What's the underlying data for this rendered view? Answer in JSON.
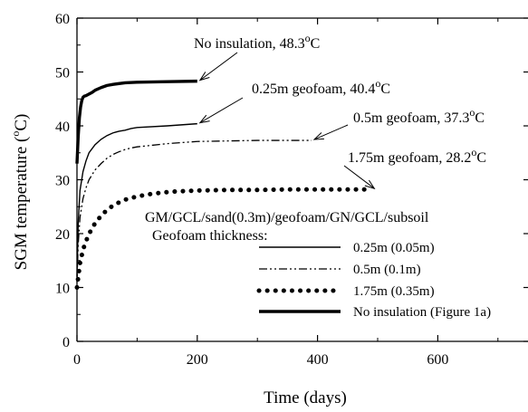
{
  "chart_data": {
    "type": "line",
    "xlabel": "Time (days)",
    "ylabel_main": "SGM temperature (",
    "ylabel_sup": "o",
    "ylabel_tail": "C)",
    "xlim": [
      0,
      750
    ],
    "ylim": [
      0,
      60
    ],
    "x_ticks": [
      0,
      200,
      400,
      600
    ],
    "y_ticks": [
      0,
      10,
      20,
      30,
      40,
      50,
      60
    ],
    "grid": false,
    "legend": {
      "title_line1": "GM/GCL/sand(0.3m)/geofoam/GN/GCL/subsoil",
      "title_line2": "Geofoam thickness:",
      "placement": "lower-right",
      "entries": [
        "0.25m (0.05m)",
        "0.5m (0.1m)",
        "1.75m (0.35m)",
        "No insulation (Figure 1a)"
      ]
    },
    "annotations": [
      {
        "main": "No insulation, 48.3",
        "sup": "o",
        "tail": "C",
        "x": 200,
        "y": 48.3
      },
      {
        "main": "0.25m geofoam, 40.4",
        "sup": "o",
        "tail": "C",
        "x": 200,
        "y": 40.4
      },
      {
        "main": "0.5m geofoam, 37.3",
        "sup": "o",
        "tail": "C",
        "x": 390,
        "y": 37.3
      },
      {
        "main": "1.75m geofoam, 28.2",
        "sup": "o",
        "tail": "C",
        "x": 490,
        "y": 28.2
      }
    ],
    "series": [
      {
        "style": "thin-solid",
        "x": [
          0,
          2,
          5,
          10,
          15,
          20,
          30,
          40,
          50,
          60,
          70,
          80,
          90,
          100,
          150,
          200
        ],
        "y": [
          12,
          22,
          28,
          31.5,
          33.5,
          35,
          36.5,
          37.5,
          38.2,
          38.7,
          39.0,
          39.2,
          39.5,
          39.7,
          40.0,
          40.4
        ]
      },
      {
        "style": "dash-dot-dot",
        "x": [
          0,
          2,
          5,
          10,
          15,
          20,
          30,
          40,
          50,
          60,
          70,
          80,
          90,
          100,
          150,
          200,
          250,
          300,
          350,
          390
        ],
        "y": [
          11,
          18,
          23,
          26.5,
          28.5,
          30,
          31.8,
          33,
          34,
          34.7,
          35.2,
          35.6,
          35.9,
          36.1,
          36.7,
          37.1,
          37.2,
          37.3,
          37.3,
          37.3
        ]
      },
      {
        "style": "dotted-heavy",
        "x": [
          0,
          5,
          10,
          15,
          20,
          25,
          30,
          40,
          50,
          60,
          70,
          80,
          100,
          120,
          140,
          160,
          180,
          200,
          250,
          300,
          350,
          400,
          450,
          490
        ],
        "y": [
          10,
          14.5,
          17,
          18.6,
          19.9,
          21,
          21.9,
          23.3,
          24.4,
          25.2,
          25.8,
          26.3,
          26.9,
          27.3,
          27.6,
          27.8,
          27.9,
          28.0,
          28.1,
          28.1,
          28.2,
          28.2,
          28.2,
          28.2
        ]
      },
      {
        "style": "thick-solid",
        "x": [
          0,
          2,
          4,
          6,
          8,
          10,
          12,
          15,
          20,
          25,
          30,
          40,
          50,
          60,
          80,
          100,
          150,
          200
        ],
        "y": [
          33,
          38,
          41.5,
          43.5,
          44.7,
          45.3,
          45.5,
          45.6,
          45.9,
          46.2,
          46.6,
          47.1,
          47.5,
          47.7,
          48.0,
          48.1,
          48.2,
          48.3
        ]
      }
    ]
  }
}
